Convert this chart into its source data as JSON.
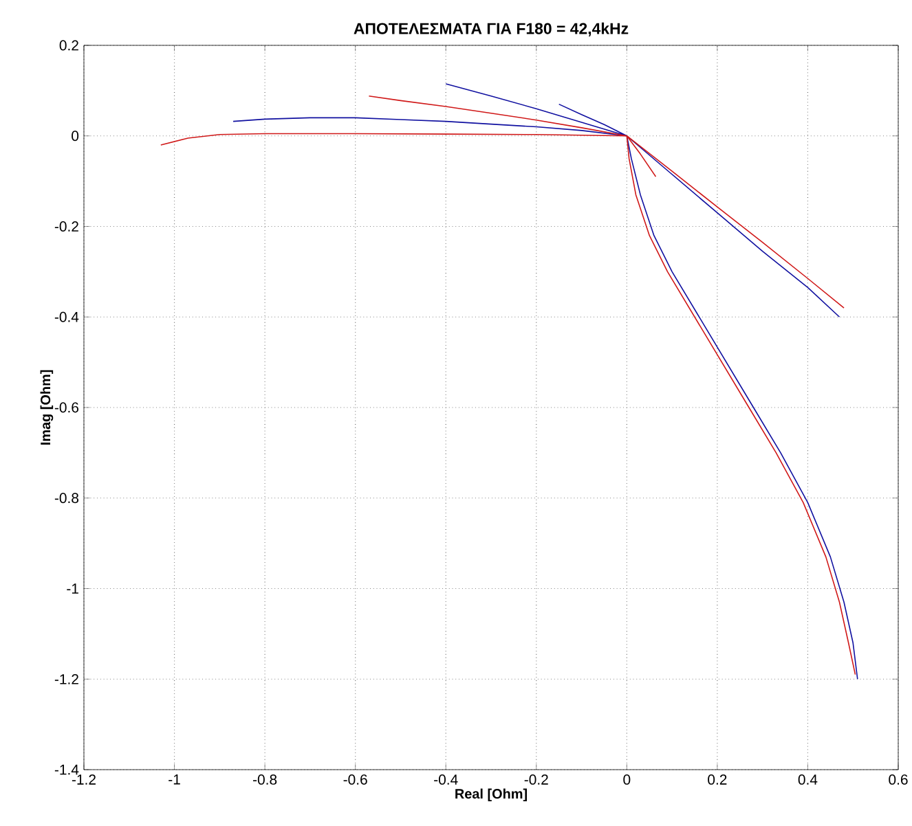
{
  "chart_data": {
    "type": "line",
    "title": "ΑΠΟΤΕΛΕΣΜΑΤΑ ΓΙΑ F180 = 42,4kHz",
    "xlabel": "Real [Ohm]",
    "ylabel": "Imag [Ohm]",
    "xlim": [
      -1.2,
      0.6
    ],
    "ylim": [
      -1.4,
      0.2
    ],
    "xticks": [
      -1.2,
      -1,
      -0.8,
      -0.6,
      -0.4,
      -0.2,
      0,
      0.2,
      0.4,
      0.6
    ],
    "yticks": [
      -1.4,
      -1.2,
      -1,
      -0.8,
      -0.6,
      -0.4,
      -0.2,
      0,
      0.2
    ],
    "grid": true,
    "marker": "none",
    "line_style": "solid",
    "series": [
      {
        "color": "#1010a0",
        "x": [
          -0.87,
          -0.8,
          -0.7,
          -0.6,
          -0.5,
          -0.4,
          -0.3,
          -0.2,
          -0.1,
          0,
          null,
          -0.4,
          -0.3,
          -0.2,
          -0.1,
          0,
          null,
          -0.15,
          -0.1,
          -0.05,
          0,
          null,
          0,
          0.1,
          0.2,
          0.3,
          0.4,
          0.47,
          null,
          0,
          0.01,
          0.03,
          0.06,
          0.1,
          0.16,
          0.22,
          0.28,
          0.34,
          0.4,
          0.45,
          0.48,
          0.5,
          0.51
        ],
        "values": [
          0.032,
          0.037,
          0.04,
          0.04,
          0.036,
          0.032,
          0.026,
          0.02,
          0.012,
          0,
          null,
          0.115,
          0.088,
          0.06,
          0.03,
          0,
          null,
          0.07,
          0.047,
          0.025,
          0,
          null,
          0,
          -0.085,
          -0.17,
          -0.255,
          -0.335,
          -0.4,
          null,
          0,
          -0.05,
          -0.13,
          -0.22,
          -0.3,
          -0.4,
          -0.5,
          -0.6,
          -0.7,
          -0.81,
          -0.93,
          -1.03,
          -1.12,
          -1.2
        ]
      },
      {
        "color": "#d01818",
        "x": [
          -1.03,
          -0.97,
          -0.9,
          -0.8,
          -0.6,
          -0.4,
          -0.2,
          0,
          null,
          -0.57,
          -0.5,
          -0.4,
          -0.3,
          -0.2,
          -0.1,
          0,
          null,
          0,
          0.03,
          0.064,
          null,
          0,
          0.1,
          0.2,
          0.3,
          0.4,
          0.48,
          null,
          0,
          0.005,
          0.02,
          0.05,
          0.09,
          0.15,
          0.21,
          0.27,
          0.33,
          0.39,
          0.44,
          0.47,
          0.49,
          0.505
        ],
        "values": [
          -0.02,
          -0.005,
          0.003,
          0.005,
          0.005,
          0.004,
          0.003,
          0,
          null,
          0.088,
          0.078,
          0.065,
          0.05,
          0.035,
          0.018,
          0,
          null,
          0,
          -0.04,
          -0.09,
          null,
          0,
          -0.078,
          -0.157,
          -0.235,
          -0.315,
          -0.38,
          null,
          0,
          -0.05,
          -0.13,
          -0.22,
          -0.3,
          -0.4,
          -0.5,
          -0.6,
          -0.7,
          -0.81,
          -0.93,
          -1.03,
          -1.12,
          -1.19
        ]
      }
    ]
  }
}
